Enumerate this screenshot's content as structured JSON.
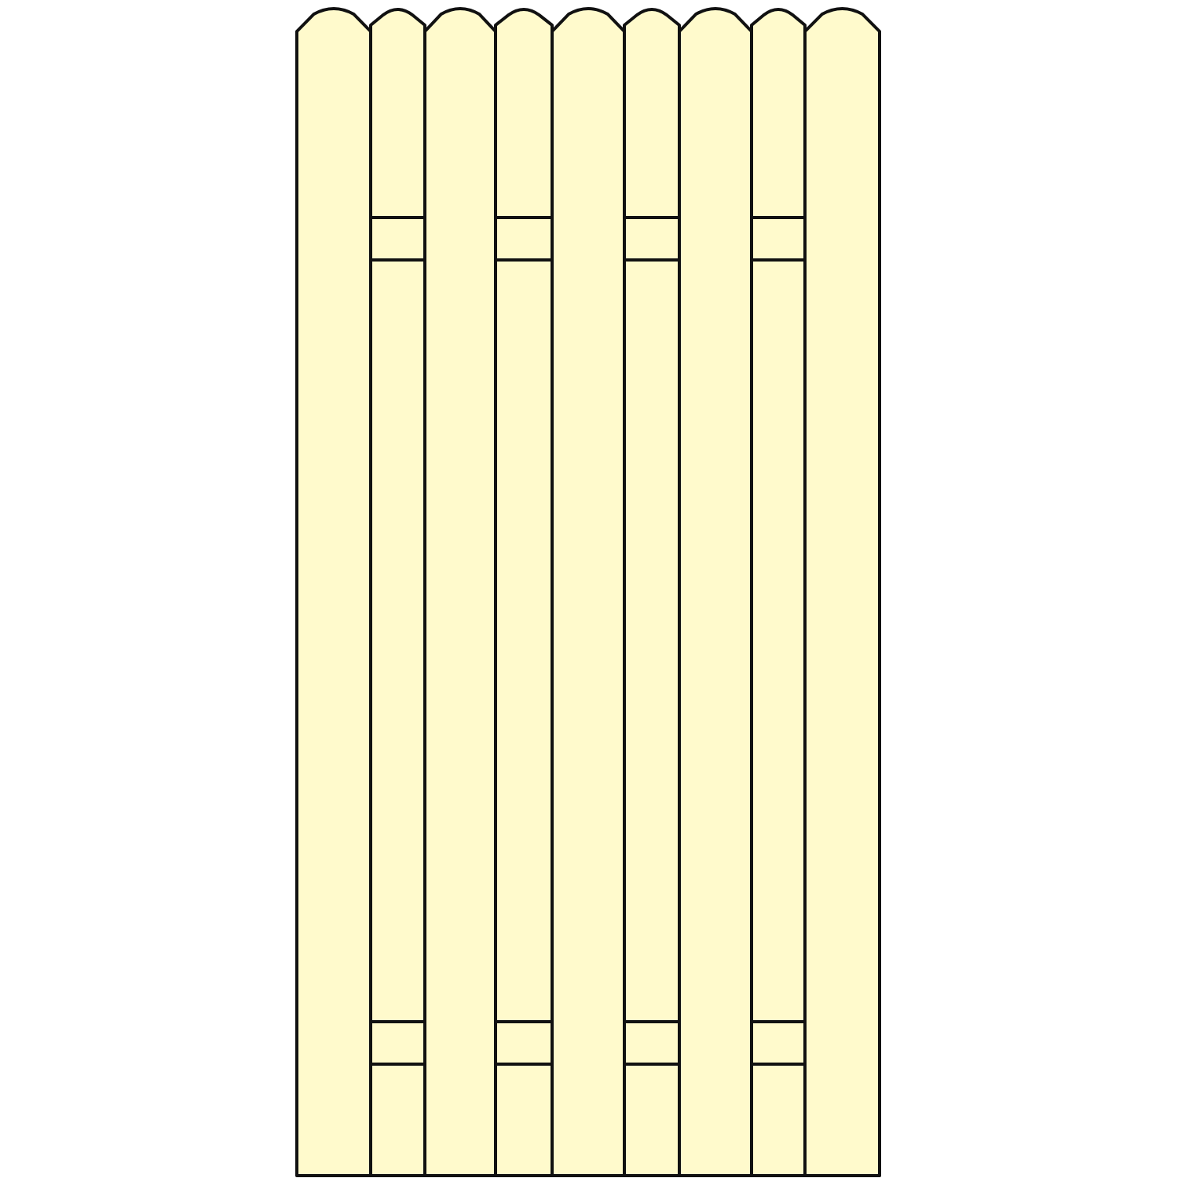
{
  "diagram": {
    "subject": "fence-panel",
    "board_count": 9,
    "front_board_count": 5,
    "back_board_count": 4,
    "rail_count": 2,
    "top_shape": "rounded",
    "colors": {
      "board_fill": "#FFFACC",
      "outline": "#111111",
      "background": "#FFFFFF"
    }
  }
}
